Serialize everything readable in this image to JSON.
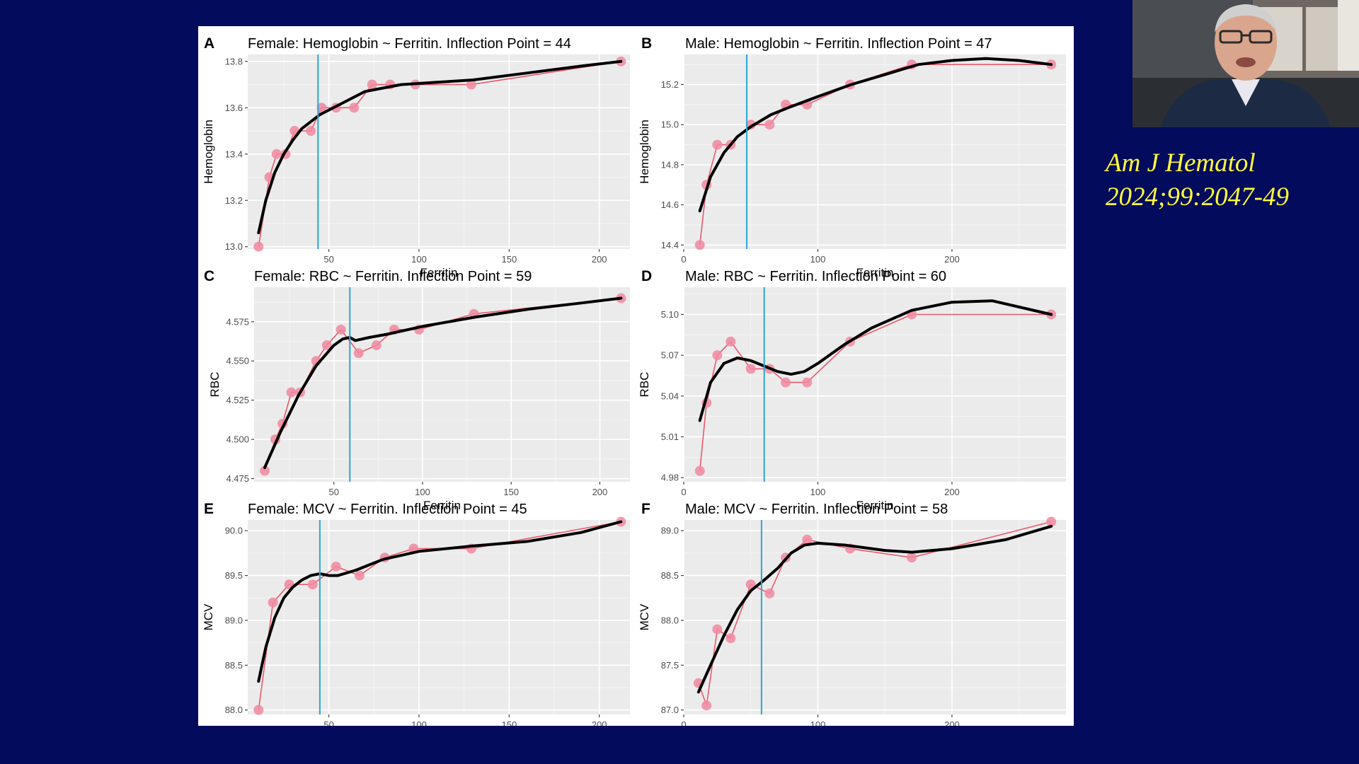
{
  "citation": {
    "journal": "Am J Hematol",
    "reference": "2024;99:2047-49"
  },
  "webcam": {
    "icon": "presenter-video-icon"
  },
  "colors": {
    "background": "#020b5c",
    "points": "#f08aa0",
    "raw_line": "#e8596b",
    "smooth_line": "#000000",
    "inflection_line": "#2aa6d6",
    "citation_text": "#fffc3a"
  },
  "chart_data": [
    {
      "type": "line",
      "letter": "A",
      "title": "Female: Hemoglobin ~ Ferritin. Inflection Point = 44",
      "xlabel": "Ferritin",
      "ylabel": "Hemoglobin",
      "xlim": [
        5,
        217
      ],
      "ylim": [
        12.99,
        13.83
      ],
      "x_ticks": [
        50,
        100,
        150,
        200
      ],
      "y_ticks": [
        13.0,
        13.2,
        13.4,
        13.6,
        13.8
      ],
      "y_tick_labels": [
        "13.0",
        "13.2",
        "13.4",
        "13.6",
        "13.8"
      ],
      "inflection_point": 44,
      "grid": true,
      "legend": "none",
      "series": [
        {
          "x": [
            11,
            17,
            21,
            26,
            31,
            40,
            46,
            54,
            64,
            74,
            84,
            98,
            129,
            212
          ],
          "values": [
            13.0,
            13.3,
            13.4,
            13.4,
            13.5,
            13.5,
            13.6,
            13.6,
            13.6,
            13.7,
            13.7,
            13.7,
            13.7,
            13.8
          ]
        },
        {
          "x": [
            11,
            15,
            20,
            25,
            30,
            35,
            40,
            45,
            55,
            70,
            90,
            110,
            130,
            160,
            190,
            212
          ],
          "values": [
            13.06,
            13.2,
            13.32,
            13.4,
            13.46,
            13.51,
            13.54,
            13.57,
            13.61,
            13.67,
            13.7,
            13.71,
            13.72,
            13.75,
            13.78,
            13.8
          ]
        }
      ]
    },
    {
      "type": "line",
      "letter": "B",
      "title": "Male: Hemoglobin ~ Ferritin. Inflection Point = 47",
      "xlabel": "Ferritin",
      "ylabel": "Hemoglobin",
      "xlim": [
        0,
        285
      ],
      "ylim": [
        14.38,
        15.35
      ],
      "x_ticks": [
        0,
        100,
        200
      ],
      "y_ticks": [
        14.4,
        14.6,
        14.8,
        15.0,
        15.2
      ],
      "y_tick_labels": [
        "14.4",
        "14.6",
        "14.8",
        "15.0",
        "15.2"
      ],
      "inflection_point": 47,
      "grid": true,
      "legend": "none",
      "series": [
        {
          "x": [
            12,
            17,
            25,
            35,
            50,
            64,
            76,
            92,
            124,
            170,
            274
          ],
          "values": [
            14.4,
            14.7,
            14.9,
            14.9,
            15.0,
            15.0,
            15.1,
            15.1,
            15.2,
            15.3,
            15.3
          ]
        },
        {
          "x": [
            12,
            20,
            30,
            40,
            50,
            65,
            80,
            100,
            125,
            150,
            175,
            200,
            225,
            250,
            274
          ],
          "values": [
            14.57,
            14.74,
            14.86,
            14.94,
            14.99,
            15.05,
            15.09,
            15.14,
            15.2,
            15.25,
            15.3,
            15.32,
            15.33,
            15.32,
            15.3
          ]
        }
      ]
    },
    {
      "type": "line",
      "letter": "C",
      "title": "Female: RBC ~ Ferritin. Inflection Point = 59",
      "xlabel": "Ferritin",
      "ylabel": "RBC",
      "xlim": [
        5,
        217
      ],
      "ylim": [
        4.473,
        4.597
      ],
      "x_ticks": [
        50,
        100,
        150,
        200
      ],
      "y_ticks": [
        4.475,
        4.5,
        4.525,
        4.55,
        4.575
      ],
      "y_tick_labels": [
        "4.475",
        "4.500",
        "4.525",
        "4.550",
        "4.575"
      ],
      "inflection_point": 59,
      "grid": true,
      "legend": "none",
      "series": [
        {
          "x": [
            11,
            17,
            21,
            26,
            31,
            40,
            46,
            54,
            64,
            74,
            84,
            98,
            129,
            212
          ],
          "values": [
            4.48,
            4.5,
            4.51,
            4.53,
            4.53,
            4.55,
            4.56,
            4.57,
            4.555,
            4.56,
            4.57,
            4.57,
            4.58,
            4.59
          ]
        },
        {
          "x": [
            11,
            20,
            30,
            40,
            50,
            55,
            59,
            62,
            70,
            80,
            100,
            130,
            160,
            190,
            212
          ],
          "values": [
            4.482,
            4.505,
            4.528,
            4.547,
            4.56,
            4.564,
            4.565,
            4.563,
            4.565,
            4.567,
            4.572,
            4.578,
            4.583,
            4.587,
            4.59
          ]
        }
      ]
    },
    {
      "type": "line",
      "letter": "D",
      "title": "Male: RBC ~ Ferritin. Inflection Point = 60",
      "xlabel": "Ferritin",
      "ylabel": "RBC",
      "xlim": [
        0,
        285
      ],
      "ylim": [
        4.977,
        5.12
      ],
      "x_ticks": [
        0,
        100,
        200
      ],
      "y_ticks": [
        4.98,
        5.01,
        5.04,
        5.07,
        5.1
      ],
      "y_tick_labels": [
        "4.98",
        "5.01",
        "5.04",
        "5.07",
        "5.10"
      ],
      "inflection_point": 60,
      "grid": true,
      "legend": "none",
      "series": [
        {
          "x": [
            12,
            17,
            25,
            35,
            50,
            64,
            76,
            92,
            124,
            170,
            274
          ],
          "values": [
            4.985,
            5.035,
            5.07,
            5.08,
            5.06,
            5.06,
            5.05,
            5.05,
            5.08,
            5.1,
            5.1
          ]
        },
        {
          "x": [
            12,
            20,
            30,
            40,
            50,
            60,
            70,
            80,
            90,
            100,
            120,
            140,
            170,
            200,
            230,
            274
          ],
          "values": [
            5.022,
            5.05,
            5.064,
            5.068,
            5.066,
            5.062,
            5.058,
            5.056,
            5.058,
            5.064,
            5.078,
            5.09,
            5.103,
            5.109,
            5.11,
            5.1
          ]
        }
      ]
    },
    {
      "type": "line",
      "letter": "E",
      "title": "Female: MCV ~ Ferritin. Inflection Point = 45",
      "xlabel": "Ferritin",
      "ylabel": "MCV",
      "xlim": [
        5,
        217
      ],
      "ylim": [
        87.95,
        90.12
      ],
      "x_ticks": [
        50,
        100,
        150,
        200
      ],
      "y_ticks": [
        88.0,
        88.5,
        89.0,
        89.5,
        90.0
      ],
      "y_tick_labels": [
        "88.0",
        "88.5",
        "89.0",
        "89.5",
        "90.0"
      ],
      "inflection_point": 45,
      "grid": true,
      "legend": "none",
      "series": [
        {
          "x": [
            11,
            19,
            28,
            41,
            54,
            67,
            81,
            97,
            129,
            212
          ],
          "values": [
            88.0,
            89.2,
            89.4,
            89.4,
            89.6,
            89.5,
            89.7,
            89.8,
            89.8,
            90.1
          ]
        },
        {
          "x": [
            11,
            15,
            20,
            25,
            30,
            35,
            40,
            45,
            50,
            55,
            65,
            80,
            100,
            130,
            160,
            190,
            212
          ],
          "values": [
            88.32,
            88.7,
            89.03,
            89.25,
            89.37,
            89.45,
            89.5,
            89.52,
            89.5,
            89.5,
            89.56,
            89.68,
            89.77,
            89.83,
            89.88,
            89.98,
            90.1
          ]
        }
      ]
    },
    {
      "type": "line",
      "letter": "F",
      "title": "Male: MCV ~ Ferritin. Inflection Point = 58",
      "xlabel": "Ferritin",
      "ylabel": "MCV",
      "xlim": [
        0,
        285
      ],
      "ylim": [
        86.95,
        89.12
      ],
      "x_ticks": [
        0,
        100,
        200
      ],
      "y_ticks": [
        87.0,
        87.5,
        88.0,
        88.5,
        89.0
      ],
      "y_tick_labels": [
        "87.0",
        "87.5",
        "88.0",
        "88.5",
        "89.0"
      ],
      "inflection_point": 58,
      "grid": true,
      "legend": "none",
      "series": [
        {
          "x": [
            11,
            17,
            25,
            35,
            50,
            64,
            76,
            92,
            124,
            170,
            274
          ],
          "values": [
            87.3,
            87.05,
            87.9,
            87.8,
            88.4,
            88.3,
            88.7,
            88.9,
            88.8,
            88.7,
            89.1
          ]
        },
        {
          "x": [
            11,
            20,
            30,
            40,
            50,
            60,
            70,
            80,
            90,
            100,
            120,
            150,
            170,
            200,
            240,
            274
          ],
          "values": [
            87.2,
            87.5,
            87.83,
            88.12,
            88.33,
            88.45,
            88.58,
            88.75,
            88.84,
            88.86,
            88.84,
            88.78,
            88.76,
            88.8,
            88.9,
            89.05
          ]
        }
      ]
    }
  ]
}
